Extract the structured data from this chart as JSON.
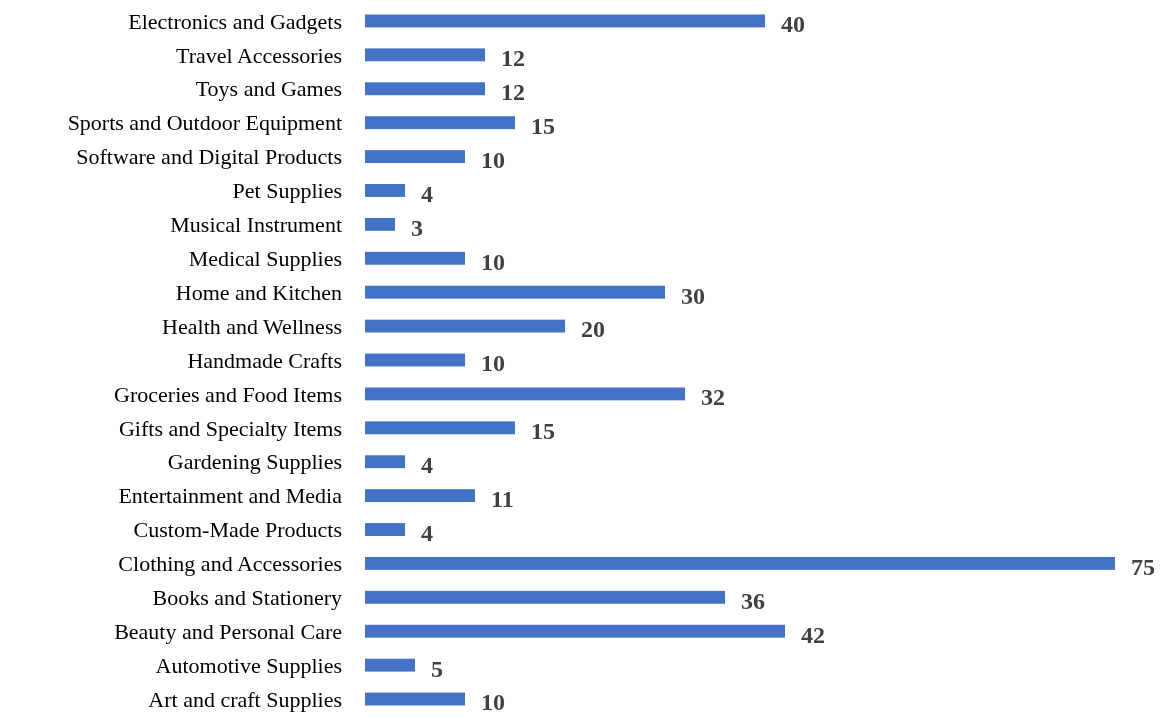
{
  "chart_data": {
    "type": "bar",
    "orientation": "horizontal",
    "categories": [
      "Electronics and Gadgets",
      "Travel Accessories",
      "Toys and Games",
      "Sports and Outdoor Equipment",
      "Software and Digital Products",
      "Pet Supplies",
      "Musical Instrument",
      "Medical Supplies",
      "Home and Kitchen",
      "Health and Wellness",
      "Handmade Crafts",
      "Groceries and Food Items",
      "Gifts and Specialty Items",
      "Gardening Supplies",
      "Entertainment and Media",
      "Custom-Made Products",
      "Clothing and Accessories",
      "Books and Stationery",
      "Beauty and Personal Care",
      "Automotive Supplies",
      "Art and craft Supplies"
    ],
    "values": [
      40,
      12,
      12,
      15,
      10,
      4,
      3,
      10,
      30,
      20,
      10,
      32,
      15,
      4,
      11,
      4,
      75,
      36,
      42,
      5,
      10
    ],
    "color": "#4472c4",
    "data_labels": true
  }
}
